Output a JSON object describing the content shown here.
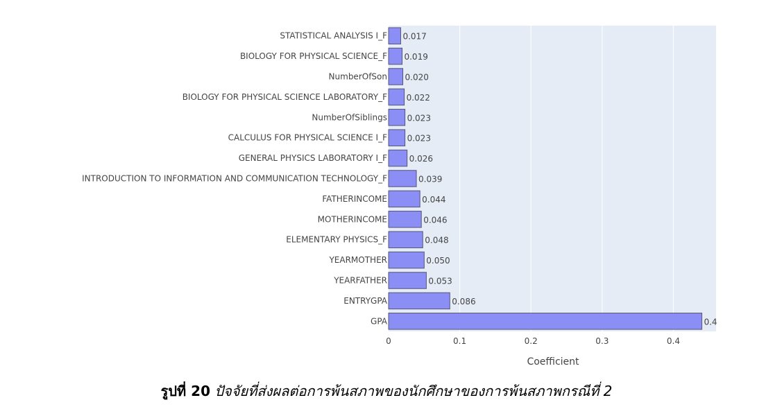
{
  "chart_data": {
    "type": "bar",
    "orientation": "horizontal",
    "xlabel": "Coefficient",
    "ylabel": "",
    "xlim": [
      0,
      0.46
    ],
    "x_ticks": [
      0,
      0.1,
      0.2,
      0.3,
      0.4
    ],
    "x_tick_labels": [
      "0",
      "0.1",
      "0.2",
      "0.3",
      "0.4"
    ],
    "grid": true,
    "bar_color": "#8b8ff5",
    "bar_stroke": "#555577",
    "plot_bg": "#e5ecf6",
    "categories": [
      "STATISTICAL ANALYSIS I_F",
      "BIOLOGY FOR PHYSICAL SCIENCE_F",
      "NumberOfSon",
      "BIOLOGY FOR PHYSICAL SCIENCE LABORATORY_F",
      "NumberOfSiblings",
      "CALCULUS FOR PHYSICAL SCIENCE I_F",
      "GENERAL PHYSICS LABORATORY I_F",
      "INTRODUCTION TO INFORMATION AND COMMUNICATION TECHNOLOGY_F",
      "FATHERINCOME",
      "MOTHERINCOME",
      "ELEMENTARY PHYSICS_F",
      "YEARMOTHER",
      "YEARFATHER",
      "ENTRYGPA",
      "GPA"
    ],
    "values": [
      0.017,
      0.019,
      0.02,
      0.022,
      0.023,
      0.023,
      0.026,
      0.039,
      0.044,
      0.046,
      0.048,
      0.05,
      0.053,
      0.086,
      0.44
    ],
    "value_labels": [
      "0.017",
      "0.019",
      "0.020",
      "0.022",
      "0.023",
      "0.023",
      "0.026",
      "0.039",
      "0.044",
      "0.046",
      "0.048",
      "0.050",
      "0.053",
      "0.086",
      "0.4"
    ]
  },
  "caption": {
    "label": "รูปที่ 20",
    "text": "ปัจจัยที่ส่งผลต่อการพ้นสภาพของนักศึกษาของการพ้นสภาพกรณีที่ 2"
  }
}
